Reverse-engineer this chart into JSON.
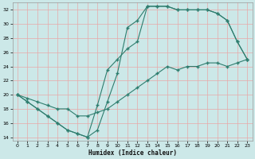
{
  "xlabel": "Humidex (Indice chaleur)",
  "bg_color": "#cce8e8",
  "line_color": "#2e7d6e",
  "grid_color": "#e8a8a8",
  "xlim": [
    -0.5,
    23.5
  ],
  "ylim": [
    13.5,
    33
  ],
  "yticks": [
    14,
    16,
    18,
    20,
    22,
    24,
    26,
    28,
    30,
    32
  ],
  "xticks": [
    0,
    1,
    2,
    3,
    4,
    5,
    6,
    7,
    8,
    9,
    10,
    11,
    12,
    13,
    14,
    15,
    16,
    17,
    18,
    19,
    20,
    21,
    22,
    23
  ],
  "line1_x": [
    0,
    1,
    2,
    3,
    4,
    5,
    6,
    7,
    8,
    9,
    10,
    11,
    12,
    13,
    14,
    15,
    16,
    17,
    18,
    19,
    20,
    21,
    22,
    23
  ],
  "line1_y": [
    20,
    19,
    18,
    17,
    16,
    15,
    14.5,
    14,
    15,
    19,
    23,
    29.5,
    30.5,
    32.5,
    32.5,
    32.5,
    32,
    32,
    32,
    32,
    31.5,
    30.5,
    27.5,
    25
  ],
  "line2_x": [
    0,
    1,
    2,
    3,
    4,
    5,
    6,
    7,
    8,
    9,
    10,
    11,
    12,
    13,
    14,
    15,
    16,
    17,
    18,
    19,
    20,
    21,
    22,
    23
  ],
  "line2_y": [
    20,
    19,
    18,
    17,
    16,
    15,
    14.5,
    14,
    18.5,
    23.5,
    25,
    26.5,
    27.5,
    32.5,
    32.5,
    32.5,
    32,
    32,
    32,
    32,
    31.5,
    30.5,
    27.5,
    25
  ],
  "line3_x": [
    0,
    1,
    2,
    3,
    4,
    5,
    6,
    7,
    8,
    9,
    10,
    11,
    12,
    13,
    14,
    15,
    16,
    17,
    18,
    19,
    20,
    21,
    22,
    23
  ],
  "line3_y": [
    20,
    19.5,
    19,
    18.5,
    18,
    18,
    17,
    17,
    17.5,
    18,
    19,
    20,
    21,
    22,
    23,
    24,
    23.5,
    24,
    24,
    24.5,
    24.5,
    24,
    24.5,
    25
  ]
}
